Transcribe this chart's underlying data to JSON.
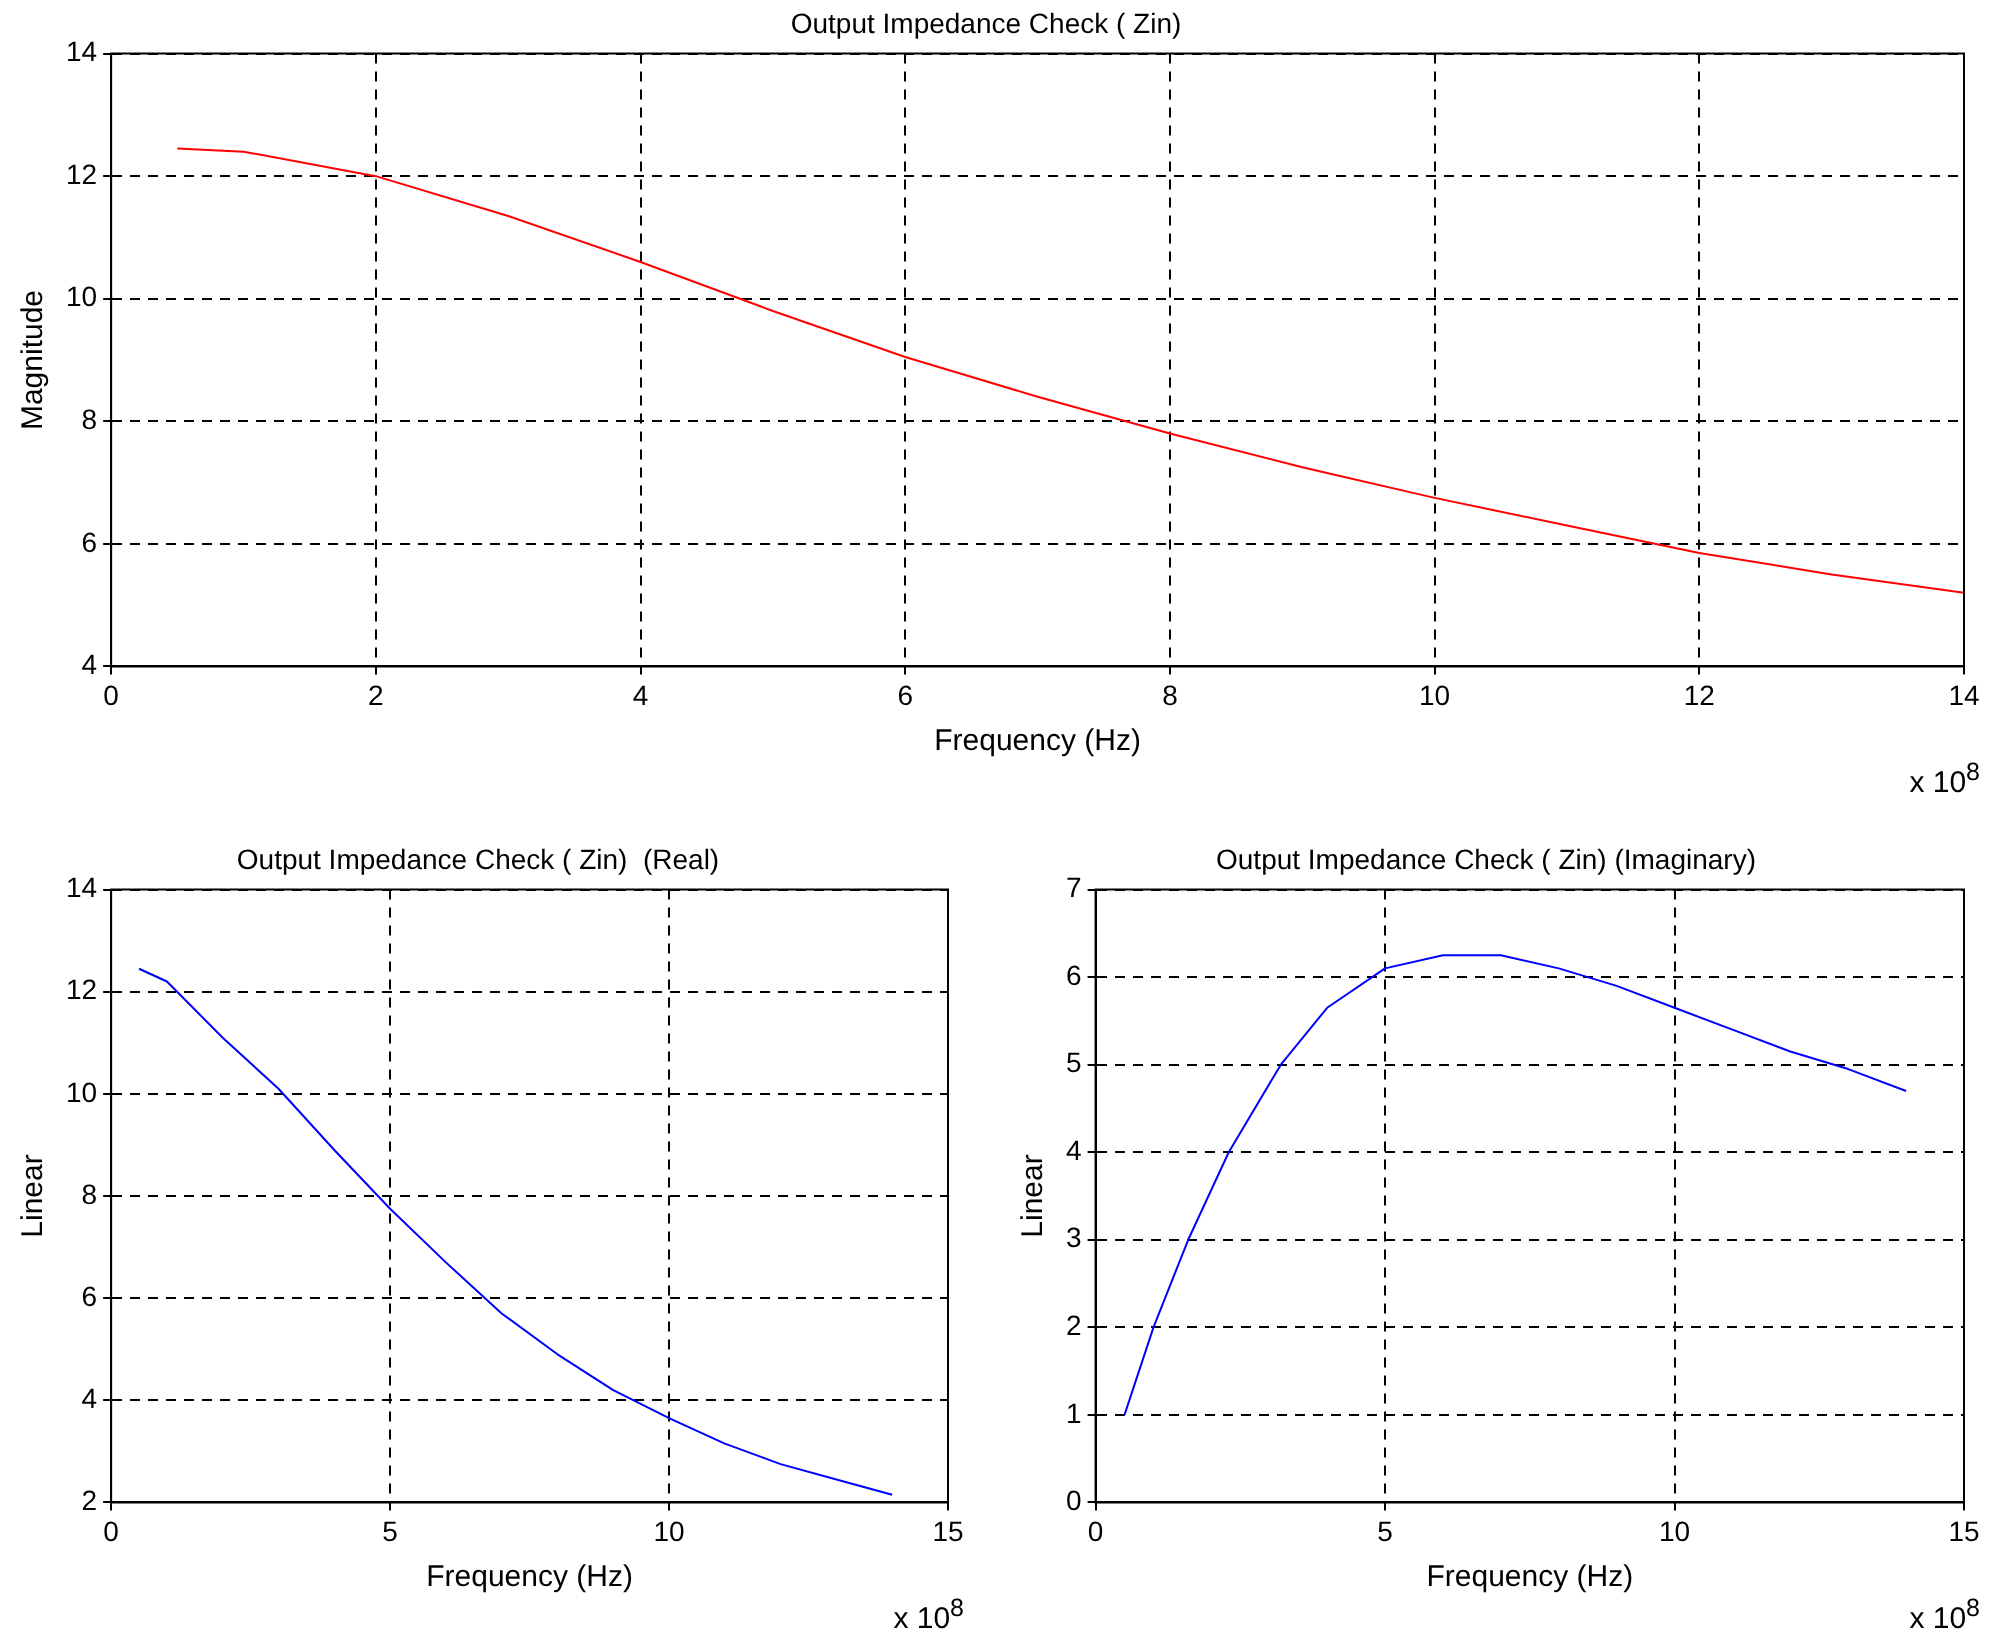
{
  "chart_data": [
    {
      "type": "line",
      "title": "Output Impedance Check ( Zin)",
      "xlabel": "Frequency (Hz)",
      "ylabel": "Magnitude",
      "annotations": [
        "x 10$^{8}$"
      ],
      "x": [
        0.5,
        1,
        2,
        3,
        4,
        5,
        6,
        7,
        8,
        9,
        10,
        11,
        12,
        13,
        14
      ],
      "series": [
        {
          "color": "#ff0000",
          "values": [
            12.45,
            12.4,
            12.0,
            11.35,
            10.6,
            9.8,
            9.05,
            8.4,
            7.8,
            7.25,
            6.75,
            6.3,
            5.85,
            5.5,
            5.2
          ]
        }
      ],
      "xlim": [
        0,
        14
      ],
      "xticks": [
        0,
        2,
        4,
        6,
        8,
        10,
        12,
        14
      ],
      "ylim": [
        4,
        14
      ],
      "yticks": [
        4,
        6,
        8,
        10,
        12,
        14
      ],
      "grid": true,
      "line_style": "solid"
    },
    {
      "type": "line",
      "title": "Output Impedance Check ( Zin)  (Real)",
      "xlabel": "Frequency (Hz)",
      "ylabel": "Linear",
      "annotations": [
        "x 10$^{8}$"
      ],
      "x": [
        0.5,
        1,
        2,
        3,
        4,
        5,
        6,
        7,
        8,
        9,
        10,
        11,
        12,
        13,
        14
      ],
      "series": [
        {
          "color": "#0000ff",
          "values": [
            12.45,
            12.2,
            11.1,
            10.1,
            8.9,
            7.75,
            6.7,
            5.7,
            4.9,
            4.2,
            3.65,
            3.15,
            2.75,
            2.45,
            2.15
          ]
        }
      ],
      "xlim": [
        0,
        15
      ],
      "xticks": [
        0,
        5,
        10,
        15
      ],
      "ylim": [
        2,
        14
      ],
      "yticks": [
        2,
        4,
        6,
        8,
        10,
        12,
        14
      ],
      "grid": true,
      "line_style": "solid"
    },
    {
      "type": "line",
      "title": "Output Impedance Check ( Zin) (Imaginary)",
      "xlabel": "Frequency (Hz)",
      "ylabel": "Linear",
      "annotations": [
        "x 10$^{8}$"
      ],
      "x": [
        0.5,
        1,
        1.6,
        2.3,
        3.2,
        4,
        5,
        6,
        7,
        8,
        9,
        10,
        11,
        12,
        13,
        14
      ],
      "series": [
        {
          "color": "#0000ff",
          "values": [
            1.0,
            2.0,
            3.0,
            4.0,
            5.0,
            5.65,
            6.1,
            6.25,
            6.25,
            6.1,
            5.9,
            5.65,
            5.4,
            5.15,
            4.95,
            4.7
          ]
        }
      ],
      "xlim": [
        0,
        15
      ],
      "xticks": [
        0,
        5,
        10,
        15
      ],
      "ylim": [
        0,
        7
      ],
      "yticks": [
        0,
        1,
        2,
        3,
        4,
        5,
        6,
        7
      ],
      "grid": true,
      "line_style": "solid"
    }
  ]
}
